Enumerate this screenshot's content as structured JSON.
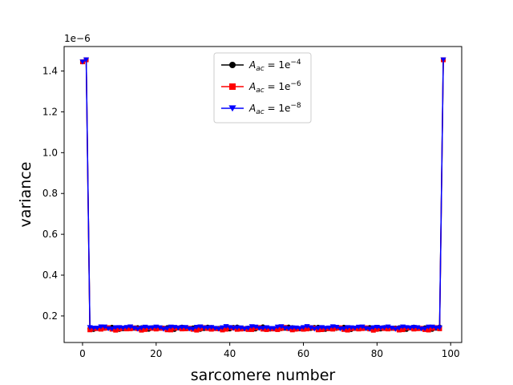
{
  "chart_data": {
    "type": "line",
    "xlabel": "sarcomere number",
    "ylabel": "variance",
    "y_offset_label": "1e−6",
    "xlim": [
      -5,
      103
    ],
    "ylim": [
      0.07,
      1.52
    ],
    "x_ticks": [
      0,
      20,
      40,
      60,
      80,
      100
    ],
    "y_ticks": [
      0.2,
      0.4,
      0.6,
      0.8,
      1.0,
      1.2,
      1.4
    ],
    "y_tick_labels": [
      "0.2",
      "0.4",
      "0.6",
      "0.8",
      "1.0",
      "1.2",
      "1.4"
    ],
    "legend_position": "upper-center",
    "grid": false,
    "series": [
      {
        "name_base": "A",
        "name_sub": "ac",
        "name_mid": "= 1e",
        "name_sup": "−4",
        "color": "#000000",
        "marker": "circle",
        "edge_value": 1.455,
        "baseline_value": 0.14
      },
      {
        "name_base": "A",
        "name_sub": "ac",
        "name_mid": "= 1e",
        "name_sup": "−6",
        "color": "#ff0000",
        "marker": "square",
        "edge_value": 1.455,
        "baseline_value": 0.137
      },
      {
        "name_base": "A",
        "name_sub": "ac",
        "name_mid": "= 1e",
        "name_sup": "−8",
        "color": "#0000ff",
        "marker": "triangle-down",
        "edge_value": 1.455,
        "baseline_value": 0.142
      }
    ]
  }
}
